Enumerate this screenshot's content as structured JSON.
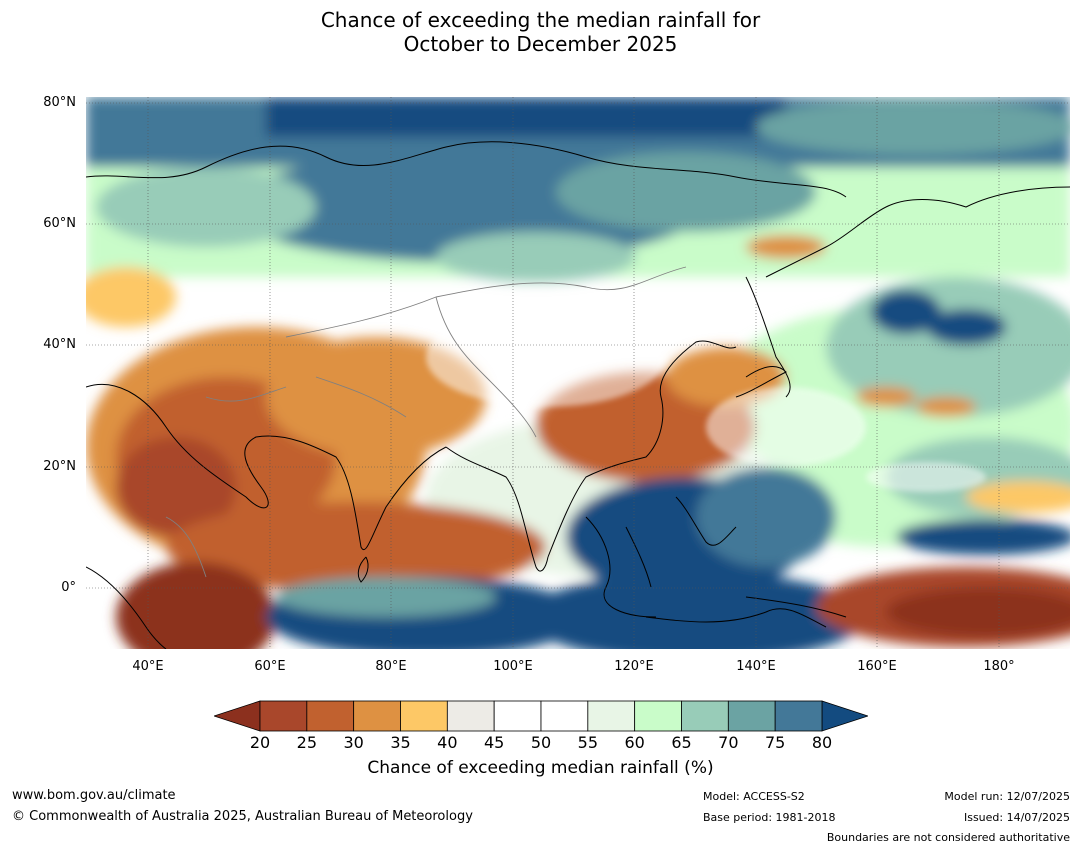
{
  "title_line1": "Chance of exceeding the median rainfall for",
  "title_line2": "October to December 2025",
  "lat_labels": [
    "80°N",
    "60°N",
    "40°N",
    "20°N",
    "0°"
  ],
  "lon_labels": [
    "40°E",
    "60°E",
    "80°E",
    "100°E",
    "120°E",
    "140°E",
    "160°E",
    "180°"
  ],
  "colorbar": {
    "ticks": [
      "20",
      "25",
      "30",
      "35",
      "40",
      "45",
      "50",
      "55",
      "60",
      "65",
      "70",
      "75",
      "80"
    ],
    "colors": [
      "#a9472b",
      "#c1612f",
      "#de9142",
      "#fdc866",
      "#edebe6",
      "#ffffff",
      "#ffffff",
      "#e8f5e6",
      "#c9fcc9",
      "#98ccb8",
      "#6ba3a3",
      "#437898"
    ],
    "low_extend_color": "#8c301e",
    "high_extend_color": "#134b80",
    "label": "Chance of exceeding median rainfall (%)"
  },
  "footer": {
    "website": "www.bom.gov.au/climate",
    "copyright": "© Commonwealth of Australia 2025, Australian Bureau of Meteorology",
    "model": "Model: ACCESS-S2",
    "base_period": "Base period: 1981-2018",
    "model_run": "Model run: 12/07/2025",
    "issued": "Issued: 14/07/2025",
    "disclaimer": "Boundaries are not considered authoritative"
  }
}
